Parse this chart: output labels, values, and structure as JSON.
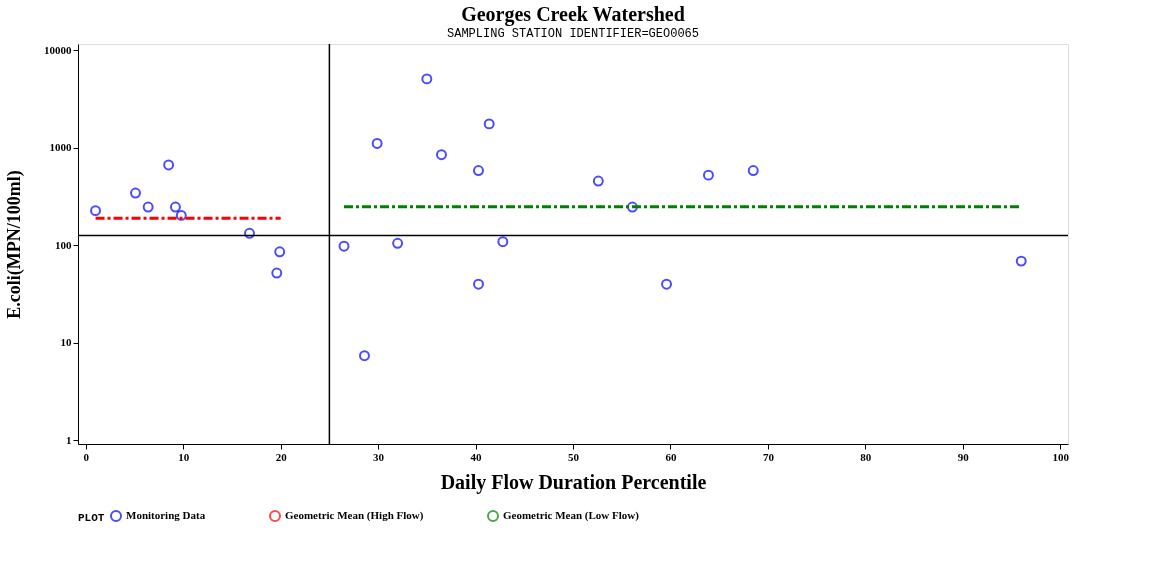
{
  "chart_data": {
    "type": "scatter",
    "title": "Georges Creek Watershed",
    "subtitle": "SAMPLING STATION IDENTIFIER=GEO0065",
    "xlabel": "Daily Flow Duration Percentile",
    "ylabel": "E.coli(MPN/100ml)",
    "legend_title": "PLOT",
    "legend": "bottom",
    "grid": false,
    "log": "y",
    "xlim": [
      -0.8,
      100.8
    ],
    "xticks": [
      0,
      10,
      20,
      30,
      40,
      50,
      60,
      70,
      80,
      90,
      100
    ],
    "ylim": [
      0.92,
      11600
    ],
    "yticks": [
      1,
      10,
      100,
      1000,
      10000
    ],
    "series": [
      {
        "name": "Monitoring Data",
        "color": "#0000ff",
        "marker": "circle",
        "x": [
          1.0,
          5.1,
          6.4,
          8.5,
          9.2,
          9.8,
          16.8,
          19.9,
          19.6,
          26.5,
          28.6,
          29.9,
          32.0,
          35.0,
          36.5,
          40.3,
          40.3,
          41.4,
          42.8,
          52.6,
          56.1,
          59.6,
          63.9,
          68.5,
          96.0
        ],
        "values": [
          227,
          344,
          247,
          668,
          247,
          203,
          133,
          86,
          52,
          98,
          7.4,
          1110,
          105,
          5090,
          851,
          585,
          40,
          1760,
          109,
          457,
          247,
          40,
          525,
          585,
          69
        ]
      },
      {
        "type": "line",
        "name": "Geometric Mean (High Flow)",
        "color": "#ff0000",
        "line_style": "dashed",
        "x": [
          1.0,
          20.0
        ],
        "values": [
          190,
          190
        ]
      },
      {
        "type": "line",
        "name": "Geometric Mean (Low Flow)",
        "color": "#008000",
        "line_style": "dashed",
        "x": [
          26.5,
          96.0
        ],
        "values": [
          249,
          249
        ]
      }
    ],
    "ref_lines": [
      {
        "axis": "x",
        "value": 25,
        "color": "#000000"
      },
      {
        "axis": "y",
        "value": 126,
        "color": "#000000"
      }
    ]
  }
}
